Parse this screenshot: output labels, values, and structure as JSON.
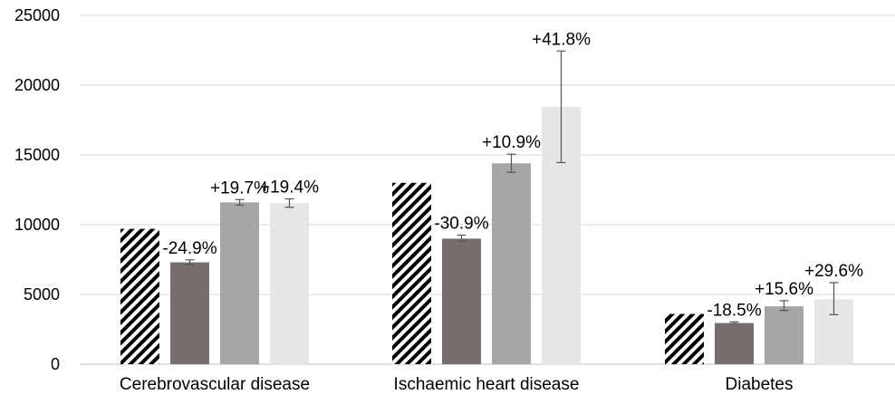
{
  "chart_data": {
    "type": "bar",
    "categories": [
      "Cerebrovascular disease",
      "Ischaemic heart disease",
      "Diabetes"
    ],
    "ylim": [
      0,
      25000
    ],
    "yticks": [
      "0",
      "5000",
      "10000",
      "15000",
      "20000",
      "25000"
    ],
    "grid": true,
    "legend": "none",
    "series": [
      {
        "values": [
          9700,
          13000,
          3600
        ],
        "errors": [
          null,
          null,
          null
        ],
        "labels": [
          "",
          "",
          ""
        ],
        "color": "#000000",
        "pattern": "diagonal-stripes"
      },
      {
        "values": [
          7300,
          9000,
          2950
        ],
        "errors": [
          [
            7150,
            7480
          ],
          [
            8800,
            9250
          ],
          [
            2880,
            3030
          ]
        ],
        "labels": [
          "-24.9%",
          "-30.9%",
          "-18.5%"
        ],
        "color": "#756e6c"
      },
      {
        "values": [
          11600,
          14400,
          4150
        ],
        "errors": [
          [
            11400,
            11800
          ],
          [
            13750,
            15050
          ],
          [
            3850,
            4550
          ]
        ],
        "labels": [
          "+19.7%",
          "+10.9%",
          "+15.6%"
        ],
        "color": "#a6a6a6"
      },
      {
        "values": [
          11550,
          18450,
          4650
        ],
        "errors": [
          [
            11250,
            11850
          ],
          [
            14450,
            22450
          ],
          [
            3550,
            5850
          ]
        ],
        "labels": [
          "+19.4%",
          "+41.8%",
          "+29.6%"
        ],
        "color": "#e6e6e6"
      }
    ]
  }
}
